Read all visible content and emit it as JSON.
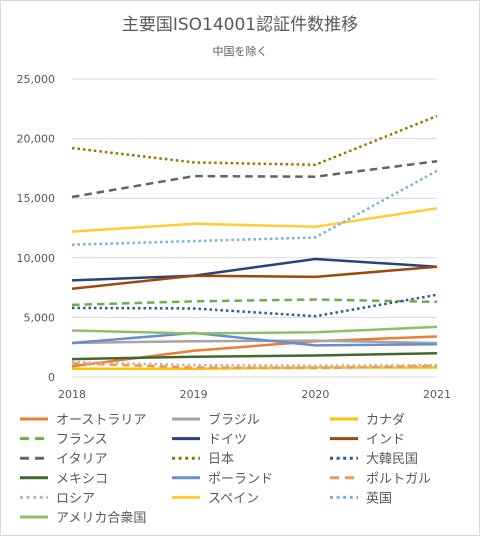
{
  "chart_data": {
    "type": "line",
    "title": "主要国ISO14001認証件数推移",
    "subtitle": "中国を除く",
    "x": [
      "2018",
      "2019",
      "2020",
      "2021"
    ],
    "ylim": [
      0,
      25000
    ],
    "yticks": [
      "0",
      "5,000",
      "10,000",
      "15,000",
      "20,000",
      "25,000"
    ],
    "grid": true,
    "legend_position": "bottom",
    "series": [
      {
        "name": "オーストラリア",
        "values": [
          900,
          2200,
          3000,
          3400
        ],
        "color": "#ed7d31",
        "dash": "solid"
      },
      {
        "name": "ブラジル",
        "values": [
          2850,
          3000,
          3050,
          2850
        ],
        "color": "#a5a5a5",
        "dash": "solid"
      },
      {
        "name": "カナダ",
        "values": [
          700,
          700,
          800,
          800
        ],
        "color": "#ffc000",
        "dash": "solid"
      },
      {
        "name": "フランス",
        "values": [
          6050,
          6350,
          6500,
          6300
        ],
        "color": "#70ad47",
        "dash": "dash"
      },
      {
        "name": "ドイツ",
        "values": [
          8100,
          8500,
          9900,
          9250
        ],
        "color": "#264478",
        "dash": "solid"
      },
      {
        "name": "インド",
        "values": [
          7400,
          8500,
          8400,
          9250
        ],
        "color": "#9e480e",
        "dash": "solid"
      },
      {
        "name": "イタリア",
        "values": [
          15100,
          16850,
          16800,
          18100
        ],
        "color": "#636363",
        "dash": "dash"
      },
      {
        "name": "日本",
        "values": [
          19200,
          18000,
          17800,
          21900
        ],
        "color": "#997300",
        "dash": "dot"
      },
      {
        "name": "大韓民国",
        "values": [
          5800,
          5750,
          5100,
          6900
        ],
        "color": "#255e91",
        "dash": "dot"
      },
      {
        "name": "メキシコ",
        "values": [
          1500,
          1700,
          1800,
          2000
        ],
        "color": "#43682b",
        "dash": "solid"
      },
      {
        "name": "ポーランド",
        "values": [
          2850,
          3700,
          2650,
          2750
        ],
        "color": "#698ed0",
        "dash": "solid"
      },
      {
        "name": "ポルトガル",
        "values": [
          1150,
          800,
          750,
          950
        ],
        "color": "#f1975a",
        "dash": "dash"
      },
      {
        "name": "ロシア",
        "values": [
          1250,
          1000,
          950,
          1000
        ],
        "color": "#b7b7b7",
        "dash": "dot"
      },
      {
        "name": "スペイン",
        "values": [
          12200,
          12850,
          12600,
          14150
        ],
        "color": "#ffcd33",
        "dash": "solid"
      },
      {
        "name": "英国",
        "values": [
          11100,
          11400,
          11700,
          17300
        ],
        "color": "#7cafdd",
        "dash": "dot"
      },
      {
        "name": "アメリカ合衆国",
        "values": [
          3900,
          3650,
          3750,
          4200
        ],
        "color": "#8cc168",
        "dash": "solid"
      }
    ]
  }
}
